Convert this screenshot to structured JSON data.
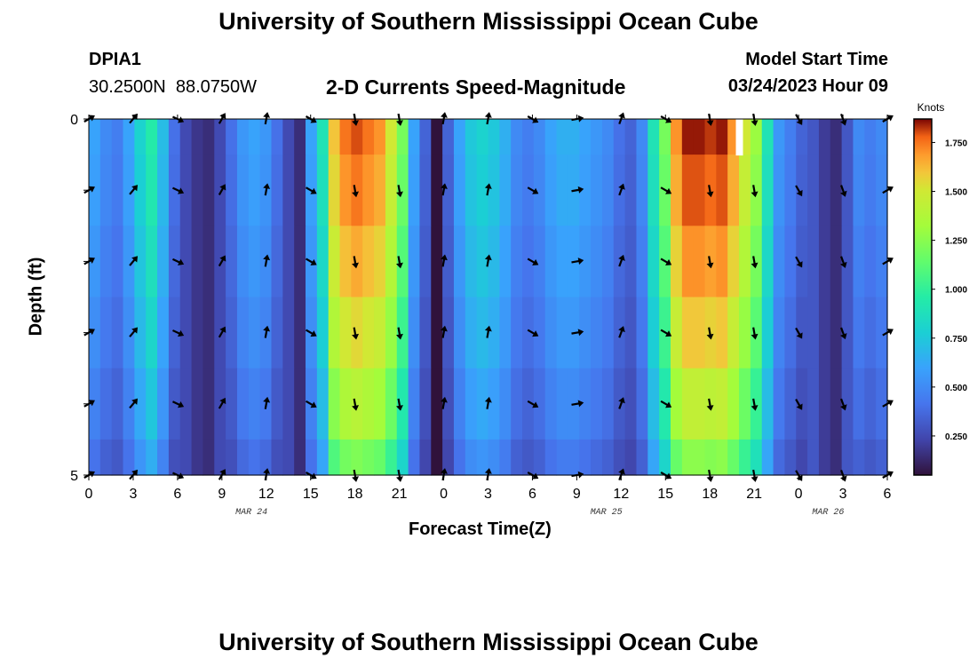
{
  "page_title": "University of Southern Mississippi Ocean Cube",
  "footer_title": "University of Southern Mississippi Ocean Cube",
  "station": {
    "id": "DPIA1",
    "lat": "30.2500N",
    "lon": "88.0750W"
  },
  "model": {
    "label": "Model Start Time",
    "value": "03/24/2023 Hour 09"
  },
  "chart_data": {
    "type": "heatmap",
    "title": "2-D Currents Speed-Magnitude",
    "xlabel": "Forecast Time(Z)",
    "ylabel": "Depth (ft)",
    "x_tick_labels": [
      "0",
      "3",
      "6",
      "9",
      "12",
      "15",
      "18",
      "21",
      "0",
      "3",
      "6",
      "9",
      "12",
      "15",
      "18",
      "21",
      "0",
      "3",
      "6"
    ],
    "x_range_hours": [
      0,
      54
    ],
    "date_labels": [
      {
        "text": "MAR 24",
        "hour": 11
      },
      {
        "text": "MAR 25",
        "hour": 35
      },
      {
        "text": "MAR 26",
        "hour": 50
      }
    ],
    "y_tick_labels": [
      {
        "text": "0",
        "depth": 0
      },
      {
        "text": "5",
        "depth": 5
      }
    ],
    "y_range": [
      0,
      5
    ],
    "depth_rows": [
      0,
      1,
      2,
      3,
      4,
      5
    ],
    "colorbar": {
      "label": "Knots",
      "min": 0.05,
      "max": 1.87,
      "ticks": [
        "0.250",
        "0.500",
        "0.750",
        "1.000",
        "1.250",
        "1.500",
        "1.750"
      ],
      "tick_values": [
        0.25,
        0.5,
        0.75,
        1.0,
        1.25,
        1.5,
        1.75
      ]
    },
    "surface_speed_knots": [
      0.6,
      0.5,
      0.45,
      0.6,
      0.8,
      0.95,
      0.7,
      0.4,
      0.25,
      0.18,
      0.15,
      0.25,
      0.4,
      0.55,
      0.6,
      0.55,
      0.4,
      0.25,
      0.15,
      0.6,
      0.9,
      1.6,
      1.75,
      1.8,
      1.75,
      1.7,
      1.5,
      1.2,
      0.6,
      0.35,
      0.05,
      0.35,
      0.6,
      0.75,
      0.8,
      0.75,
      0.65,
      0.5,
      0.45,
      0.5,
      0.6,
      0.65,
      0.65,
      0.6,
      0.55,
      0.5,
      0.4,
      0.35,
      0.5,
      0.9,
      1.2,
      1.7,
      1.85,
      1.85,
      1.82,
      1.85,
      1.7,
      1.5,
      1.3,
      0.9,
      0.55,
      0.45,
      0.35,
      0.3,
      0.2,
      0.15,
      0.3,
      0.5,
      0.45,
      0.5
    ],
    "depth_speed_factor": [
      1.0,
      0.97,
      0.92,
      0.86,
      0.78,
      0.68
    ],
    "vector_hours": [
      0,
      3,
      6,
      9,
      12,
      15,
      18,
      21,
      24,
      27,
      30,
      33,
      36,
      39,
      42,
      45,
      48,
      51,
      54
    ],
    "vector_directions_deg": [
      60,
      40,
      115,
      30,
      10,
      120,
      170,
      170,
      10,
      10,
      120,
      80,
      20,
      120,
      170,
      170,
      150,
      160,
      60
    ],
    "missing_cell": {
      "hour": 44,
      "depth": 0
    }
  }
}
